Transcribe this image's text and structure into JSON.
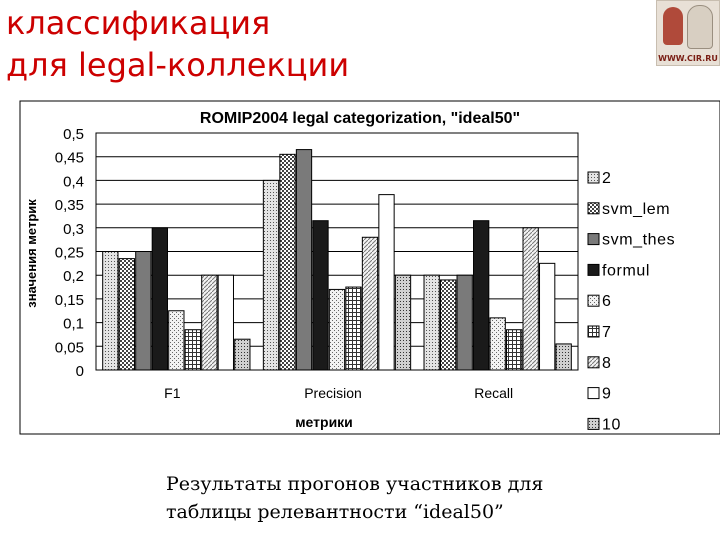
{
  "slide": {
    "title_line1": "классификация",
    "title_line2": "для legal-коллекции",
    "logo_text": "WWW.CIR.RU",
    "caption_line1": "Результаты прогонов участников для",
    "caption_line2": "таблицы релевантности  “ideal50”"
  },
  "chart_data": {
    "type": "bar",
    "title": "ROMIP2004 legal categorization, \"ideal50\"",
    "xlabel": "метрики",
    "ylabel": "значения метрик",
    "categories": [
      "F1",
      "Precision",
      "Recall"
    ],
    "ylim": [
      0,
      0.5
    ],
    "yticks": [
      "0",
      "0,05",
      "0,1",
      "0,15",
      "0,2",
      "0,25",
      "0,3",
      "0,35",
      "0,4",
      "0,45",
      "0,5"
    ],
    "grid": "horizontal",
    "legend_position": "right",
    "series": [
      {
        "name": "2",
        "values": [
          0.25,
          0.4,
          0.2
        ],
        "pattern": "dots-light"
      },
      {
        "name": "svm_lem",
        "values": [
          0.235,
          0.455,
          0.19
        ],
        "pattern": "checker"
      },
      {
        "name": "svm_thes",
        "values": [
          0.25,
          0.465,
          0.2
        ],
        "pattern": "solid-gray"
      },
      {
        "name": "formul",
        "values": [
          0.3,
          0.315,
          0.315
        ],
        "pattern": "solid-black"
      },
      {
        "name": "6",
        "values": [
          0.125,
          0.17,
          0.11
        ],
        "pattern": "dots-sparse"
      },
      {
        "name": "7",
        "values": [
          0.085,
          0.175,
          0.085
        ],
        "pattern": "grid"
      },
      {
        "name": "8",
        "values": [
          0.2,
          0.28,
          0.3
        ],
        "pattern": "diag-dots"
      },
      {
        "name": "9",
        "values": [
          0.2,
          0.37,
          0.225
        ],
        "pattern": "white"
      },
      {
        "name": "10",
        "values": [
          0.065,
          0.2,
          0.055
        ],
        "pattern": "hatch-dots"
      }
    ]
  }
}
